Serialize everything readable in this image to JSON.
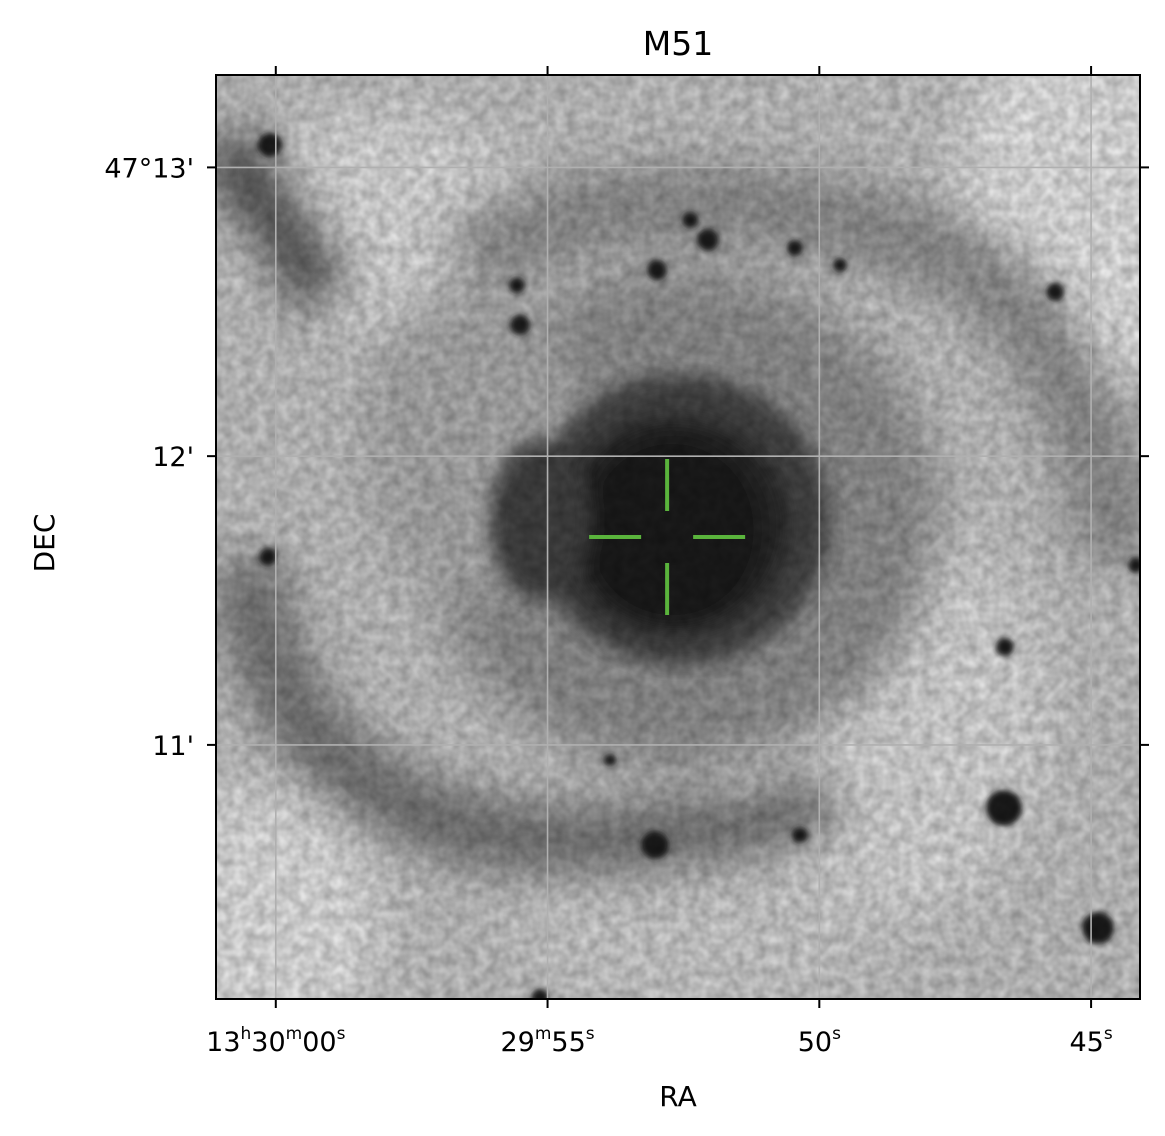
{
  "chart_data": {
    "type": "heatmap",
    "title": "M51",
    "xlabel": "RA",
    "ylabel": "DEC",
    "colormap": "grayscale-inverted",
    "grid": true,
    "grid_color": "#b0b0b0",
    "marker_color": "#5ab43c",
    "marker": "crosshair",
    "x_ticks": [
      {
        "parts": [
          [
            "13",
            "n"
          ],
          [
            "h",
            "s"
          ],
          [
            "30",
            "n"
          ],
          [
            "m",
            "s"
          ],
          [
            "00",
            "n"
          ],
          [
            "s",
            "s"
          ]
        ]
      },
      {
        "parts": [
          [
            "29",
            "n"
          ],
          [
            "m",
            "s"
          ],
          [
            "55",
            "n"
          ],
          [
            "s",
            "s"
          ]
        ]
      },
      {
        "parts": [
          [
            "50",
            "n"
          ],
          [
            "s",
            "s"
          ]
        ]
      },
      {
        "parts": [
          [
            "45",
            "n"
          ],
          [
            "s",
            "s"
          ]
        ]
      }
    ],
    "x_tick_seconds": [
      60,
      55,
      50,
      45
    ],
    "xlim_seconds": [
      61.1,
      44.1
    ],
    "y_ticks": [
      "47°13'",
      "12'",
      "11'"
    ],
    "y_tick_minutes": [
      13,
      12,
      11
    ],
    "ylim_minutes": [
      10.12,
      13.32
    ],
    "target": {
      "ra_seconds": 52.8,
      "dec_minutes": 11.72
    }
  }
}
